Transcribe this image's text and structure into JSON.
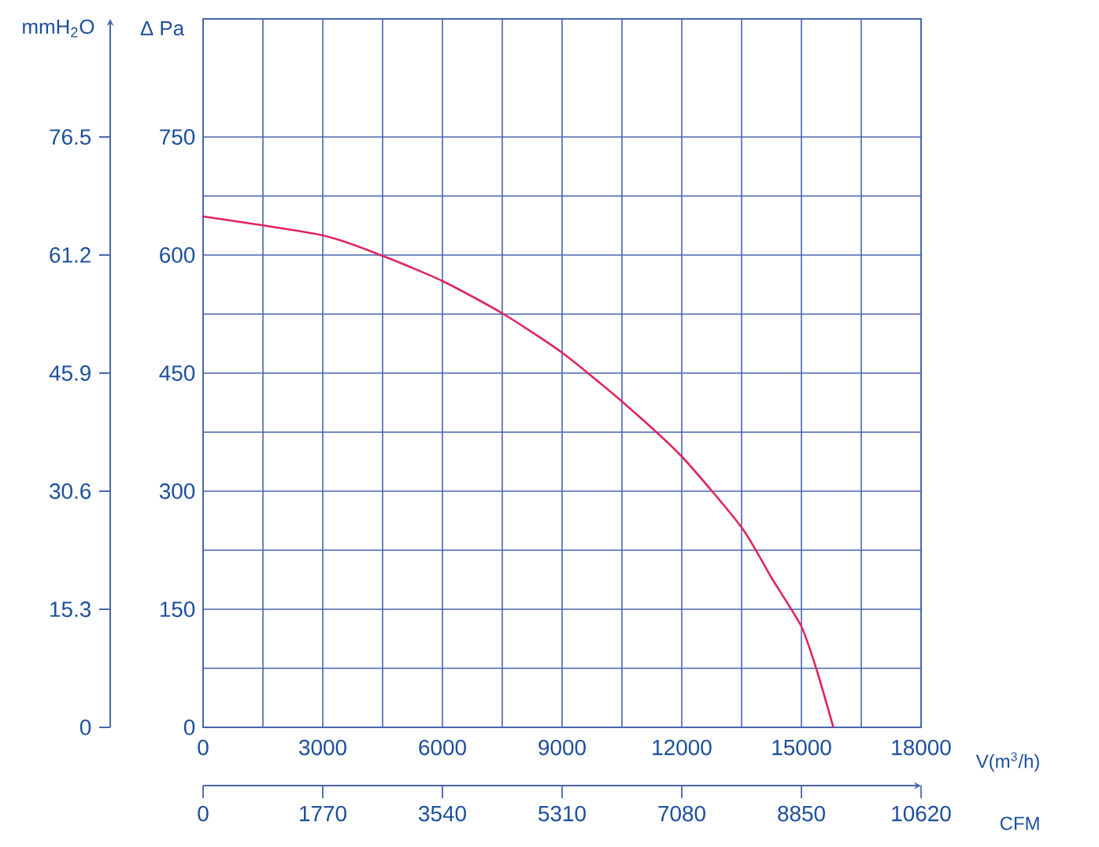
{
  "chart_data": {
    "type": "line",
    "xlabel": "V(m$^{3}$/h)",
    "ylabel": "Δ Pa",
    "y2label": "mmH$_{2}$O",
    "x2label": "CFM",
    "x": [
      0,
      3000,
      4500,
      6000,
      7500,
      9000,
      10500,
      12000,
      13500,
      14250,
      15000,
      15400,
      15800
    ],
    "series": [
      {
        "color": "#e0245e",
        "values": [
          649,
          625,
          599,
          567,
          526,
          476,
          414,
          344,
          254,
          190,
          128,
          70,
          0
        ]
      }
    ],
    "xlim": [
      0,
      18000
    ],
    "xticks": [
      0,
      3000,
      6000,
      9000,
      12000,
      15000,
      18000
    ],
    "ylim": [
      0,
      900
    ],
    "yticks": [
      0,
      150,
      300,
      450,
      600,
      750
    ],
    "y2lim": [
      0,
      91.8
    ],
    "y2ticks": [
      0,
      15.3,
      30.6,
      45.9,
      61.2,
      76.5
    ],
    "x2lim": [
      0,
      10620
    ],
    "x2ticks": [
      0,
      1770,
      3540,
      5310,
      7080,
      8850,
      10620
    ],
    "grid": true,
    "marker": "none",
    "line_style": "solid"
  }
}
